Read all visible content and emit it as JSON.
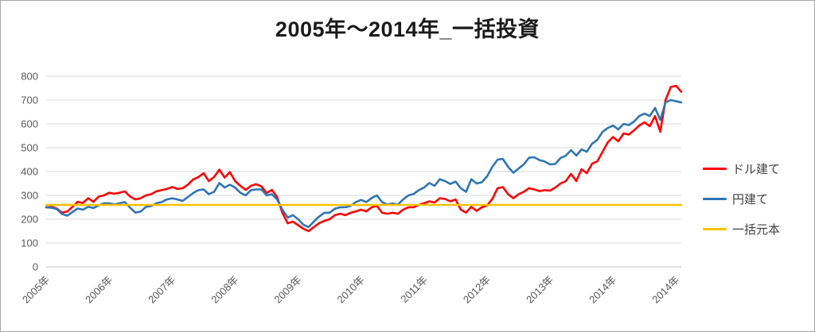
{
  "chart_data": {
    "type": "line",
    "title": "2005年～2014年_一括投資",
    "legend_position": "right",
    "grid": "horizontal",
    "y_axis": {
      "min": 0,
      "max": 800,
      "step": 100,
      "tick_labels": [
        "0",
        "100",
        "200",
        "300",
        "400",
        "500",
        "600",
        "700",
        "800"
      ]
    },
    "x_axis": {
      "tick_labels": [
        "2005年",
        "2006年",
        "2007年",
        "2008年",
        "2009年",
        "2010年",
        "2011年",
        "2012年",
        "2013年",
        "2014年",
        "2014年"
      ],
      "tick_interval_points": 12,
      "label_rotation_deg": -45
    },
    "series": [
      {
        "name": "ドル建て",
        "color": "#FF0000",
        "values": [
          250,
          252,
          245,
          228,
          232,
          252,
          273,
          268,
          288,
          273,
          295,
          300,
          311,
          307,
          311,
          317,
          295,
          283,
          288,
          300,
          305,
          317,
          322,
          327,
          335,
          327,
          330,
          345,
          367,
          377,
          393,
          360,
          377,
          408,
          375,
          398,
          360,
          340,
          323,
          340,
          347,
          338,
          310,
          323,
          293,
          227,
          183,
          190,
          175,
          160,
          150,
          167,
          183,
          193,
          200,
          217,
          223,
          217,
          227,
          233,
          240,
          233,
          250,
          256,
          227,
          223,
          227,
          223,
          240,
          250,
          250,
          260,
          267,
          275,
          270,
          288,
          285,
          275,
          283,
          240,
          228,
          252,
          235,
          250,
          258,
          285,
          330,
          335,
          305,
          288,
          305,
          315,
          330,
          325,
          318,
          322,
          320,
          333,
          350,
          360,
          390,
          360,
          410,
          393,
          433,
          443,
          483,
          523,
          545,
          527,
          560,
          555,
          573,
          593,
          607,
          590,
          633,
          567,
          700,
          755,
          760,
          735
        ]
      },
      {
        "name": "円建て",
        "color": "#2E75B6",
        "values": [
          250,
          248,
          243,
          222,
          215,
          230,
          245,
          240,
          252,
          247,
          258,
          267,
          267,
          262,
          267,
          272,
          248,
          228,
          232,
          252,
          255,
          267,
          272,
          283,
          288,
          283,
          277,
          293,
          310,
          322,
          325,
          305,
          315,
          352,
          333,
          345,
          333,
          311,
          300,
          322,
          325,
          325,
          300,
          305,
          283,
          240,
          207,
          217,
          200,
          177,
          167,
          190,
          211,
          227,
          227,
          244,
          250,
          250,
          256,
          272,
          281,
          272,
          289,
          300,
          272,
          261,
          266,
          261,
          283,
          300,
          306,
          322,
          333,
          352,
          340,
          368,
          360,
          348,
          358,
          330,
          315,
          368,
          350,
          355,
          380,
          420,
          450,
          453,
          420,
          395,
          413,
          430,
          458,
          460,
          448,
          442,
          430,
          432,
          457,
          467,
          490,
          467,
          493,
          483,
          517,
          533,
          567,
          583,
          593,
          577,
          600,
          595,
          610,
          633,
          643,
          633,
          667,
          617,
          690,
          700,
          695,
          690
        ]
      },
      {
        "name": "一括元本",
        "color": "#FFC000",
        "constant": 260
      }
    ]
  }
}
